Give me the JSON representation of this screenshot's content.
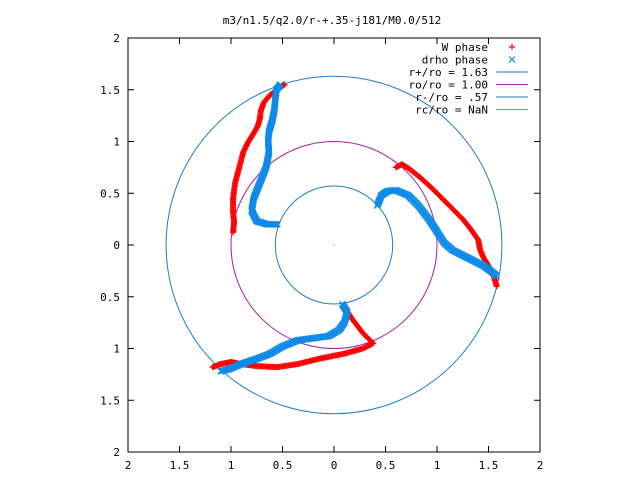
{
  "chart_data": {
    "type": "scatter",
    "title": "m3/n1.5/q2.0/r-+.35-j181/M0.0/512",
    "xlabel": "",
    "ylabel": "",
    "xlim": [
      -2,
      2
    ],
    "ylim": [
      -2,
      2
    ],
    "x_tick_values": [
      -2,
      -1.5,
      -1,
      -0.5,
      0,
      0.5,
      1,
      1.5,
      2
    ],
    "x_tick_labels": [
      "2",
      "1.5",
      "1",
      "0.5",
      "0",
      "0.5",
      "1",
      "1.5",
      "2"
    ],
    "y_tick_values": [
      2,
      1.5,
      1,
      0.5,
      0,
      -0.5,
      -1,
      -1.5,
      -2
    ],
    "y_tick_labels": [
      "2",
      "1.5",
      "1",
      "0.5",
      "0",
      "0.5",
      "1",
      "1.5",
      "2"
    ],
    "grid": false,
    "legend_position": "top-right",
    "series": [
      {
        "name": "W phase",
        "kind": "points",
        "marker": "plus",
        "color": "#ff0000",
        "arms": [
          [
            [
              -0.98,
              0.12
            ],
            [
              -0.97,
              0.22
            ],
            [
              -0.98,
              0.32
            ],
            [
              -0.98,
              0.45
            ],
            [
              -0.96,
              0.6
            ],
            [
              -0.92,
              0.75
            ],
            [
              -0.88,
              0.9
            ],
            [
              -0.83,
              1.0
            ],
            [
              -0.78,
              1.08
            ],
            [
              -0.74,
              1.15
            ],
            [
              -0.72,
              1.22
            ],
            [
              -0.71,
              1.3
            ],
            [
              -0.68,
              1.38
            ],
            [
              -0.62,
              1.45
            ],
            [
              -0.55,
              1.5
            ],
            [
              -0.48,
              1.55
            ]
          ],
          [
            [
              0.6,
              0.75
            ],
            [
              0.66,
              0.78
            ],
            [
              0.74,
              0.73
            ],
            [
              0.84,
              0.65
            ],
            [
              0.95,
              0.55
            ],
            [
              1.05,
              0.45
            ],
            [
              1.15,
              0.35
            ],
            [
              1.25,
              0.25
            ],
            [
              1.33,
              0.15
            ],
            [
              1.4,
              0.05
            ],
            [
              1.42,
              -0.05
            ],
            [
              1.45,
              -0.12
            ],
            [
              1.5,
              -0.2
            ],
            [
              1.55,
              -0.3
            ],
            [
              1.58,
              -0.4
            ]
          ],
          [
            [
              0.1,
              -0.6
            ],
            [
              0.18,
              -0.72
            ],
            [
              0.28,
              -0.85
            ],
            [
              0.38,
              -0.95
            ],
            [
              0.28,
              -1.0
            ],
            [
              0.1,
              -1.05
            ],
            [
              -0.15,
              -1.1
            ],
            [
              -0.35,
              -1.15
            ],
            [
              -0.55,
              -1.18
            ],
            [
              -0.75,
              -1.17
            ],
            [
              -0.9,
              -1.15
            ],
            [
              -1.0,
              -1.13
            ],
            [
              -1.1,
              -1.15
            ],
            [
              -1.18,
              -1.18
            ]
          ]
        ]
      },
      {
        "name": "drho phase",
        "kind": "points",
        "marker": "cross",
        "color": "#0f8ae8",
        "arms": [
          [
            [
              -0.55,
              0.2
            ],
            [
              -0.65,
              0.2
            ],
            [
              -0.75,
              0.23
            ],
            [
              -0.8,
              0.33
            ],
            [
              -0.78,
              0.45
            ],
            [
              -0.72,
              0.6
            ],
            [
              -0.66,
              0.75
            ],
            [
              -0.63,
              0.9
            ],
            [
              -0.64,
              1.0
            ],
            [
              -0.63,
              1.1
            ],
            [
              -0.6,
              1.2
            ],
            [
              -0.58,
              1.3
            ],
            [
              -0.57,
              1.4
            ],
            [
              -0.56,
              1.5
            ],
            [
              -0.52,
              1.55
            ]
          ],
          [
            [
              0.42,
              0.38
            ],
            [
              0.46,
              0.48
            ],
            [
              0.52,
              0.52
            ],
            [
              0.6,
              0.53
            ],
            [
              0.72,
              0.48
            ],
            [
              0.82,
              0.38
            ],
            [
              0.92,
              0.25
            ],
            [
              1.0,
              0.13
            ],
            [
              1.07,
              0.02
            ],
            [
              1.15,
              -0.05
            ],
            [
              1.25,
              -0.1
            ],
            [
              1.35,
              -0.15
            ],
            [
              1.45,
              -0.2
            ],
            [
              1.52,
              -0.25
            ],
            [
              1.58,
              -0.3
            ]
          ],
          [
            [
              0.08,
              -0.57
            ],
            [
              0.13,
              -0.65
            ],
            [
              0.1,
              -0.75
            ],
            [
              0.05,
              -0.82
            ],
            [
              -0.05,
              -0.88
            ],
            [
              -0.2,
              -0.9
            ],
            [
              -0.35,
              -0.92
            ],
            [
              -0.5,
              -0.98
            ],
            [
              -0.62,
              -1.05
            ],
            [
              -0.75,
              -1.1
            ],
            [
              -0.9,
              -1.15
            ],
            [
              -1.02,
              -1.2
            ],
            [
              -1.1,
              -1.22
            ]
          ]
        ]
      },
      {
        "name": "r+/ro = 1.63",
        "kind": "circle",
        "radius": 1.63,
        "color": "#1f7fc1"
      },
      {
        "name": "ro/ro = 1.00",
        "kind": "circle",
        "radius": 1.0,
        "color": "#a020a0"
      },
      {
        "name": "r-/ro = .57",
        "kind": "circle",
        "radius": 0.57,
        "color": "#1f7fc1"
      },
      {
        "name": "rc/ro = NaN",
        "kind": "circle",
        "radius": null,
        "color": "#2ab7d0"
      }
    ]
  }
}
